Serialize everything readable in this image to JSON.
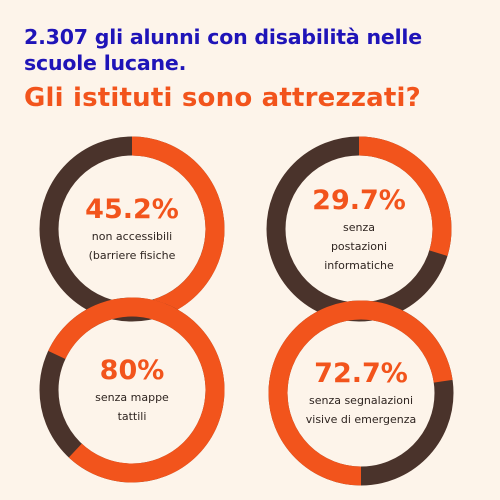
{
  "header": {
    "title": "2.307 gli alunni con disabilità nelle scuole lucane.",
    "subtitle": "Gli istituti sono attrezzati?"
  },
  "colors": {
    "highlight": "#f2541c",
    "base": "#4a332b",
    "title": "#1f14b8",
    "background": "#fdf4ea"
  },
  "chart_data": [
    {
      "type": "pie",
      "title": "45.2%",
      "label_lines": [
        "non accessibili",
        "(barriere fisiche"
      ],
      "values": [
        45.2,
        54.8
      ]
    },
    {
      "type": "pie",
      "title": "29.7%",
      "label_lines": [
        "senza",
        "postazioni",
        "informatiche"
      ],
      "values": [
        29.7,
        70.3
      ]
    },
    {
      "type": "pie",
      "title": "80%",
      "label_lines": [
        "senza mappe",
        "tattili"
      ],
      "values": [
        80,
        20
      ]
    },
    {
      "type": "pie",
      "title": "72.7%",
      "label_lines": [
        "senza segnalazioni",
        "visive di emergenza"
      ],
      "values": [
        72.7,
        27.3
      ]
    }
  ]
}
